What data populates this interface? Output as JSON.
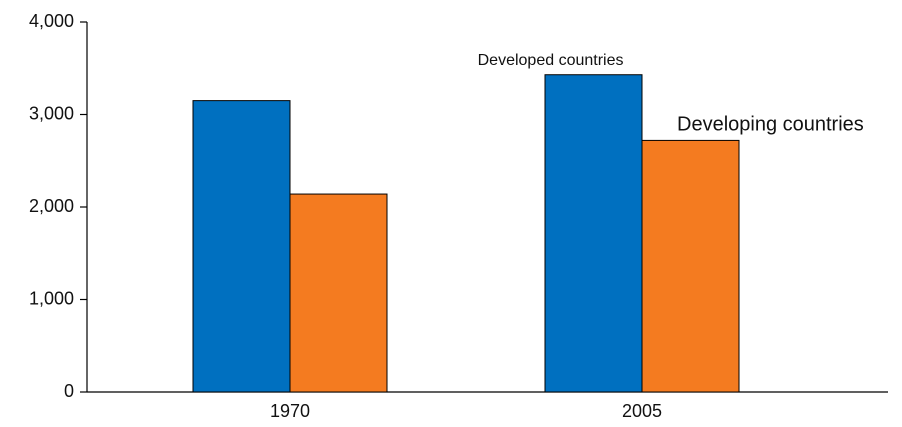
{
  "chart_data": {
    "type": "bar",
    "categories": [
      "1970",
      "2005"
    ],
    "series": [
      {
        "name": "Developed countries",
        "color": "#0070c0",
        "values": [
          3150,
          3430
        ]
      },
      {
        "name": "Developing countries",
        "color": "#f47b20",
        "values": [
          2140,
          2720
        ]
      }
    ],
    "ylim": [
      0,
      4000
    ],
    "yticks": [
      0,
      {
        "value": 1000,
        "label": "1,000"
      },
      {
        "value": 2000,
        "label": "2,000"
      },
      {
        "value": 3000,
        "label": "3,000"
      },
      {
        "value": 4000,
        "label": "4,000"
      }
    ],
    "grid": false
  }
}
